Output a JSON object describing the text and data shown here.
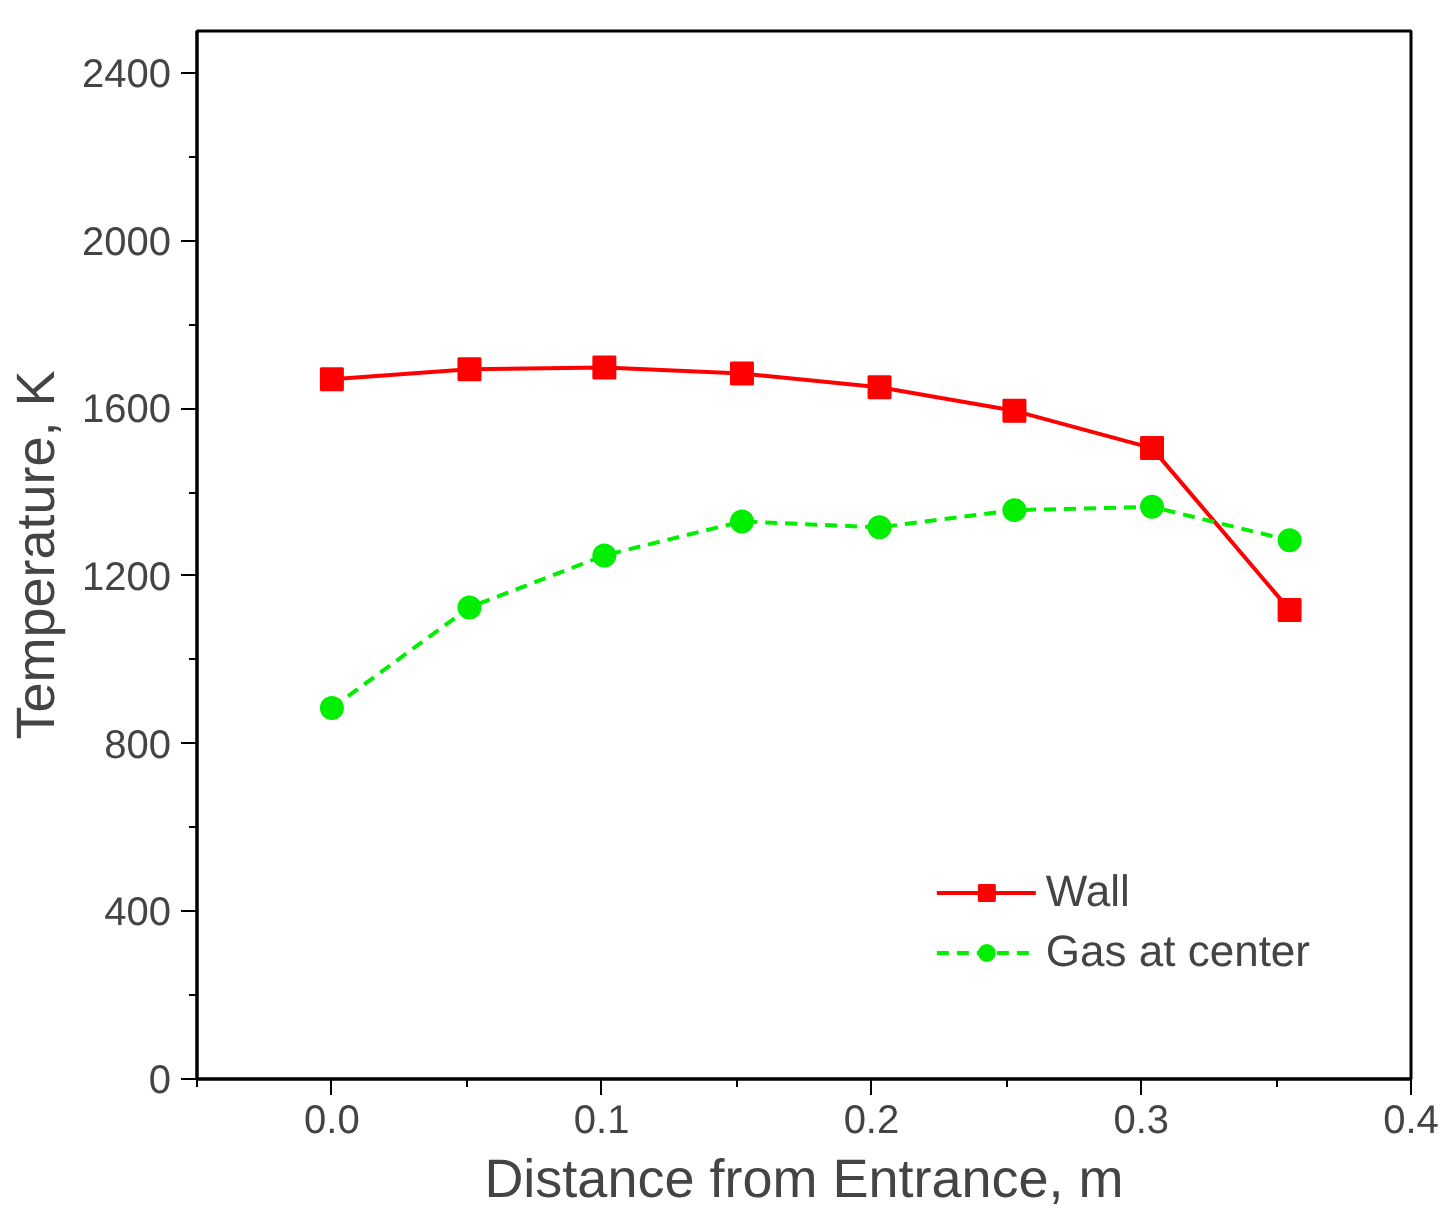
{
  "chart_data": {
    "type": "line",
    "xlabel": "Distance from Entrance, m",
    "ylabel": "Temperature, K",
    "x": [
      0,
      0.051,
      0.101,
      0.152,
      0.203,
      0.253,
      0.304,
      0.355
    ],
    "series": [
      {
        "name": "Wall",
        "color": "#ff0000",
        "marker": "square",
        "line_style": "solid",
        "values": [
          1669,
          1693,
          1697,
          1683,
          1650,
          1594,
          1505,
          1119
        ]
      },
      {
        "name": "Gas at center",
        "color": "#00ee00",
        "marker": "circle",
        "line_style": "dashed",
        "values": [
          885,
          1125,
          1249,
          1330,
          1316,
          1357,
          1365,
          1285
        ]
      }
    ],
    "xlim": [
      -0.05,
      0.4
    ],
    "xticks": [
      {
        "value": 0,
        "label": "0.0"
      },
      0.1,
      0.2,
      0.3,
      0.4
    ],
    "ylim": [
      0,
      2500
    ],
    "yticks": [
      0,
      400,
      800,
      1200,
      1600,
      2000,
      2400
    ],
    "grid": false,
    "legend": "bottom right"
  }
}
